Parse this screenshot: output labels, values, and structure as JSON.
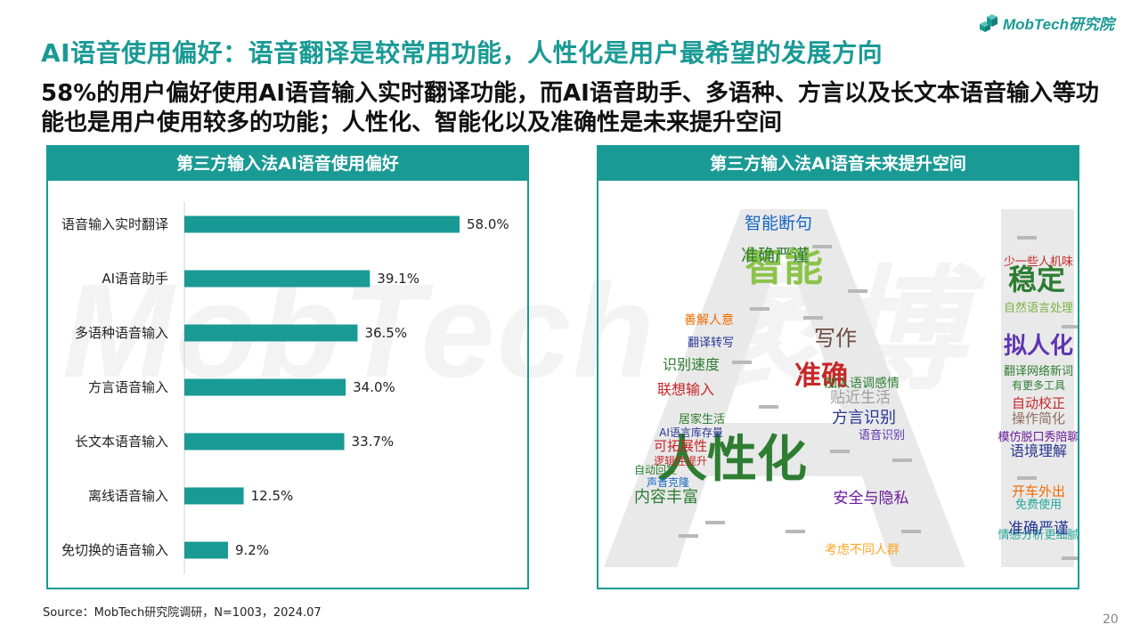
{
  "logo": {
    "text": "MobTech研究院"
  },
  "watermark": "MobTech 袤博",
  "title": "AI语音使用偏好：语音翻译是较常用功能，人性化是用户最希望的发展方向",
  "subtitle": "58%的用户偏好使用AI语音输入实时翻译功能，而AI语音助手、多语种、方言以及长文本语音输入等功能也是用户使用较多的功能；人性化、智能化以及准确性是未来提升空间",
  "left_panel": {
    "title": "第三方输入法AI语音使用偏好"
  },
  "right_panel": {
    "title": "第三方输入法AI语音未来提升空间"
  },
  "chart_data": [
    {
      "type": "bar",
      "orientation": "horizontal",
      "title": "第三方输入法AI语音使用偏好",
      "categories": [
        "语音输入实时翻译",
        "AI语音助手",
        "多语种语音输入",
        "方言语音输入",
        "长文本语音输入",
        "离线语音输入",
        "免切换的语音输入"
      ],
      "values": [
        58.0,
        39.1,
        36.5,
        34.0,
        33.7,
        12.5,
        9.2
      ],
      "value_labels": [
        "58.0%",
        "39.1%",
        "36.5%",
        "34.0%",
        "33.7%",
        "12.5%",
        "9.2%"
      ],
      "unit": "%",
      "xlim": [
        0,
        100
      ],
      "bar_color": "#1a9a95",
      "grid": false,
      "legend": false
    }
  ],
  "wordcloud": {
    "letters": "AI",
    "words": [
      {
        "text": "人性化",
        "color": "#2e7d32"
      },
      {
        "text": "智能",
        "color": "#8bc34a"
      },
      {
        "text": "准确",
        "color": "#c62828"
      },
      {
        "text": "稳定",
        "color": "#2e7d32"
      },
      {
        "text": "拟人化",
        "color": "#5e35b1"
      },
      {
        "text": "写作",
        "color": "#6d4c41"
      },
      {
        "text": "智能断句",
        "color": "#1565c0"
      },
      {
        "text": "准确严谨",
        "color": "#2e7d32"
      },
      {
        "text": "方言识别",
        "color": "#283593"
      },
      {
        "text": "贴近生活",
        "color": "#9e9e9e"
      },
      {
        "text": "内容丰富",
        "color": "#2e7d32"
      },
      {
        "text": "安全与隐私",
        "color": "#6a1b9a"
      },
      {
        "text": "识别速度",
        "color": "#2e7d32"
      },
      {
        "text": "联想输入",
        "color": "#c62828"
      },
      {
        "text": "语境理解",
        "color": "#283593"
      },
      {
        "text": "操作简化",
        "color": "#8d6e63"
      },
      {
        "text": "自动校正",
        "color": "#c62828"
      },
      {
        "text": "开车外出",
        "color": "#ef6c00"
      },
      {
        "text": "情感分析更细腻",
        "color": "#26a69a"
      },
      {
        "text": "准确严谨",
        "color": "#283593"
      },
      {
        "text": "可拓展性",
        "color": "#c62828"
      },
      {
        "text": "善解人意",
        "color": "#ef6c00"
      },
      {
        "text": "加入语调感情",
        "color": "#2e7d32"
      },
      {
        "text": "考虑不同人群",
        "color": "#f9a825"
      },
      {
        "text": "翻译网络新词",
        "color": "#2e7d32"
      },
      {
        "text": "模仿脱口秀陪聊",
        "color": "#6a1b9a"
      },
      {
        "text": "自然语言处理",
        "color": "#7cb342"
      },
      {
        "text": "语音识别",
        "color": "#5e35b1"
      },
      {
        "text": "少一些人机味",
        "color": "#c62828"
      },
      {
        "text": "免费使用",
        "color": "#26a69a"
      },
      {
        "text": "翻译转写",
        "color": "#283593"
      },
      {
        "text": "居家生活",
        "color": "#2e7d32"
      },
      {
        "text": "AI语言库存量",
        "color": "#283593"
      },
      {
        "text": "逻辑性提升",
        "color": "#c62828"
      },
      {
        "text": "声音克隆",
        "color": "#1565c0"
      },
      {
        "text": "自动回复",
        "color": "#2e7d32"
      },
      {
        "text": "有更多工具",
        "color": "#2e7d32"
      }
    ]
  },
  "source": "Source：MobTech研究院调研，N=1003，2024.07",
  "page_number": "20"
}
